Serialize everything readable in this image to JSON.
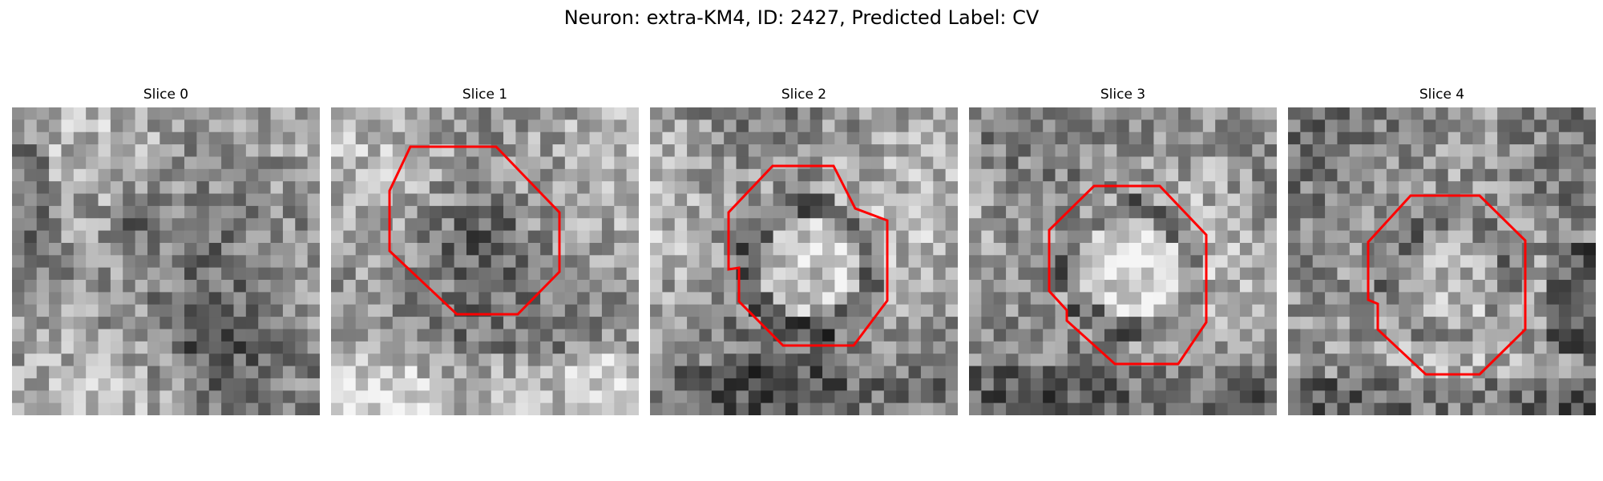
{
  "figure": {
    "title": "Neuron: extra-KM4, ID: 2427, Predicted Label: CV",
    "overlay_color": "#ff0000",
    "colormap": "gray",
    "panels": [
      {
        "label": "Slice 0",
        "has_outline": false
      },
      {
        "label": "Slice 1",
        "has_outline": true
      },
      {
        "label": "Slice 2",
        "has_outline": true
      },
      {
        "label": "Slice 3",
        "has_outline": true
      },
      {
        "label": "Slice 4",
        "has_outline": true
      }
    ]
  }
}
